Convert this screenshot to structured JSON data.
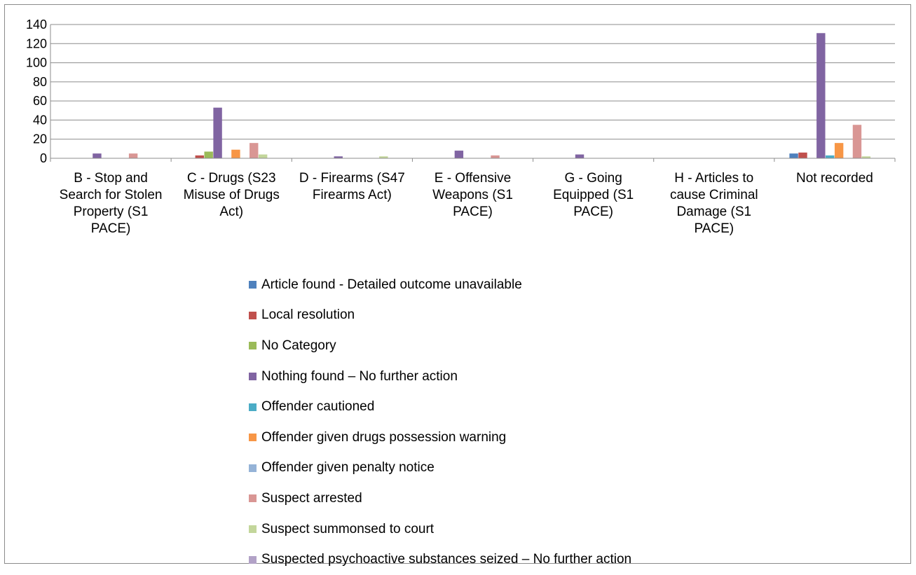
{
  "chart_data": {
    "type": "bar",
    "title": "",
    "xlabel": "",
    "ylabel": "",
    "ylim": [
      0,
      140
    ],
    "yticks": [
      0,
      20,
      40,
      60,
      80,
      100,
      120,
      140
    ],
    "grid": true,
    "legend_position": "bottom",
    "categories": [
      [
        "B - Stop and",
        "Search for Stolen",
        "Property (S1",
        "PACE)"
      ],
      [
        "C - Drugs (S23",
        "Misuse of Drugs",
        "Act)"
      ],
      [
        "D - Firearms (S47",
        "Firearms Act)"
      ],
      [
        "E - Offensive",
        "Weapons (S1",
        "PACE)"
      ],
      [
        "G - Going",
        "Equipped (S1",
        "PACE)"
      ],
      [
        "H - Articles to",
        "cause Criminal",
        "Damage (S1",
        "PACE)"
      ],
      [
        "Not recorded"
      ]
    ],
    "series": [
      {
        "name": "Article found - Detailed outcome unavailable",
        "color": "#4f81bd",
        "values": [
          0,
          0,
          0,
          0,
          0,
          0,
          5
        ]
      },
      {
        "name": "Local resolution",
        "color": "#c0504d",
        "values": [
          0,
          3,
          0,
          0,
          0,
          0,
          6
        ]
      },
      {
        "name": "No Category",
        "color": "#9bbb59",
        "values": [
          0,
          7,
          0,
          0,
          0,
          0,
          0
        ]
      },
      {
        "name": "Nothing found – No further action",
        "color": "#8064a2",
        "values": [
          5,
          53,
          2,
          8,
          4,
          0,
          131
        ]
      },
      {
        "name": "Offender cautioned",
        "color": "#4bacc6",
        "values": [
          0,
          0,
          0,
          0,
          0,
          0,
          3
        ]
      },
      {
        "name": "Offender given drugs possession warning",
        "color": "#f79646",
        "values": [
          0,
          9,
          0,
          0,
          0,
          0,
          16
        ]
      },
      {
        "name": "Offender given penalty notice",
        "color": "#95b3d7",
        "values": [
          0,
          0,
          0,
          0,
          0,
          0,
          0
        ]
      },
      {
        "name": "Suspect arrested",
        "color": "#d99694",
        "values": [
          5,
          16,
          0,
          3,
          0,
          0,
          35
        ]
      },
      {
        "name": "Suspect summonsed to court",
        "color": "#c3d69b",
        "values": [
          0,
          4,
          2,
          0,
          0,
          0,
          2
        ]
      },
      {
        "name": "Suspected psychoactive substances seized – No further action",
        "color": "#b2a2c7",
        "values": [
          0,
          0,
          0,
          0,
          0,
          0,
          0
        ]
      }
    ]
  }
}
